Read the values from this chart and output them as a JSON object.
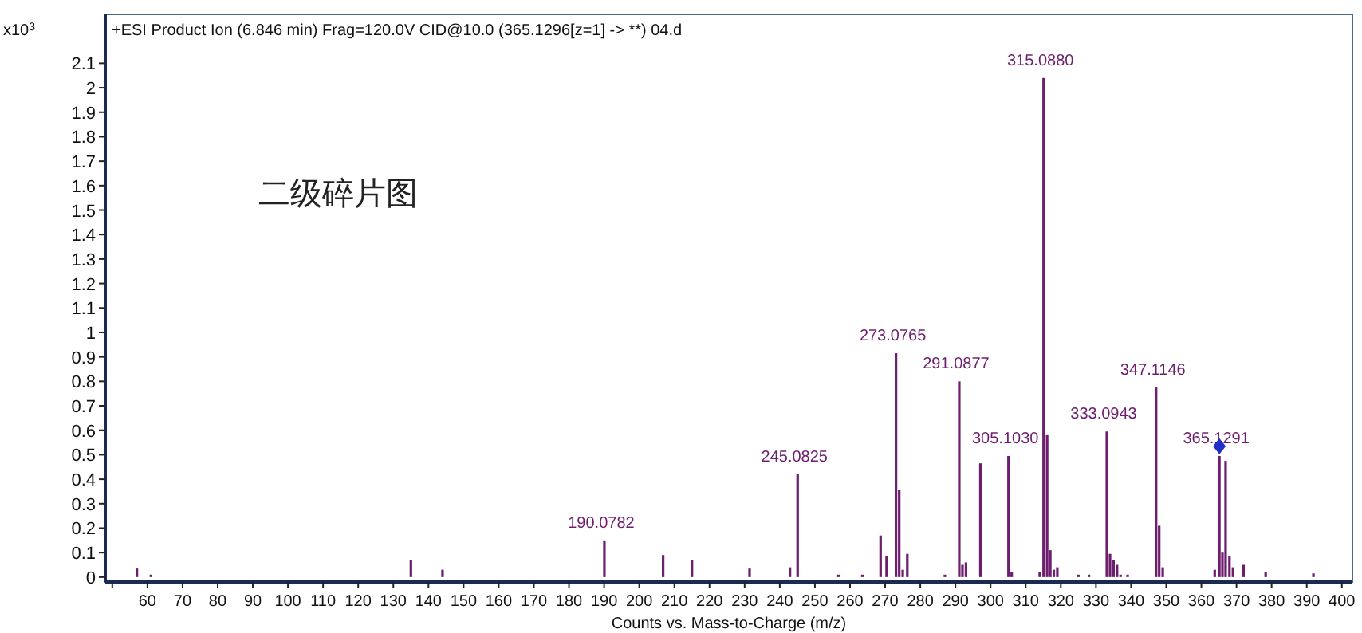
{
  "chart_data": {
    "type": "bar",
    "title": "+ESI Product Ion (6.846 min) Frag=120.0V CID@10.0 (365.1296[z=1] -> **) 04.d",
    "xlabel": "Counts vs. Mass-to-Charge (m/z)",
    "ylabel": "x10$^{3}$",
    "annotations": [
      "二级碎片图",
      {
        "text": "190.0782",
        "x": 190.08,
        "y": 0.15
      },
      {
        "text": "245.0825",
        "x": 245.08,
        "y": 0.42
      },
      {
        "text": "273.0765",
        "x": 273.08,
        "y": 0.915
      },
      {
        "text": "291.0877",
        "x": 291.09,
        "y": 0.8
      },
      {
        "text": "305.1030",
        "x": 305.1,
        "y": 0.495
      },
      {
        "text": "315.0880",
        "x": 315.09,
        "y": 2.04
      },
      {
        "text": "333.0943",
        "x": 333.09,
        "y": 0.595
      },
      {
        "text": "347.1146",
        "x": 347.11,
        "y": 0.775
      },
      {
        "text": "365.1291",
        "x": 365.13,
        "y": 0.495
      }
    ],
    "xlim": [
      48,
      403
    ],
    "xticks": [
      {
        "value": 50,
        "label": null
      },
      60,
      70,
      80,
      90,
      100,
      110,
      120,
      130,
      140,
      150,
      160,
      170,
      180,
      190,
      200,
      210,
      220,
      230,
      240,
      250,
      260,
      270,
      280,
      290,
      300,
      310,
      320,
      330,
      340,
      350,
      360,
      370,
      380,
      390,
      400
    ],
    "ylim": [
      -0.02,
      2.3
    ],
    "yticks": [
      0,
      0.1,
      0.2,
      0.3,
      0.4,
      0.5,
      0.6,
      0.7,
      0.8,
      0.9,
      1,
      1.1,
      1.2,
      1.3,
      1.4,
      1.5,
      1.6,
      1.7,
      1.8,
      1.9,
      2,
      2.1
    ],
    "grid": false,
    "series": [
      {
        "color": "#6e1e6e",
        "x": [
          57,
          61,
          135,
          144,
          190.08,
          206.8,
          215,
          231.4,
          242.9,
          245.08,
          256.7,
          263.5,
          268.7,
          270.4,
          273.08,
          274,
          275,
          276.3,
          287,
          291.09,
          292,
          293,
          297.1,
          305.1,
          306,
          314,
          315.09,
          316.1,
          317,
          318,
          319,
          325,
          328,
          333.09,
          334,
          335,
          336,
          337,
          339,
          347.11,
          348,
          349,
          363.8,
          365.13,
          366,
          366.9,
          368,
          369,
          372,
          378.3,
          391.9
        ],
        "values": [
          0.035,
          0.01,
          0.07,
          0.03,
          0.15,
          0.09,
          0.07,
          0.035,
          0.04,
          0.42,
          0.01,
          0.01,
          0.17,
          0.085,
          0.915,
          0.355,
          0.03,
          0.095,
          0.01,
          0.8,
          0.05,
          0.06,
          0.465,
          0.495,
          0.02,
          0.02,
          2.04,
          0.58,
          0.11,
          0.03,
          0.04,
          0.01,
          0.01,
          0.595,
          0.095,
          0.07,
          0.05,
          0.01,
          0.01,
          0.775,
          0.21,
          0.04,
          0.03,
          0.495,
          0.1,
          0.475,
          0.085,
          0.04,
          0.05,
          0.02,
          0.015
        ]
      },
      {
        "type": "scatter",
        "color": "#1f2fc8",
        "marker": "diamond",
        "x": [
          365.13
        ],
        "values": [
          0.535
        ]
      }
    ]
  }
}
